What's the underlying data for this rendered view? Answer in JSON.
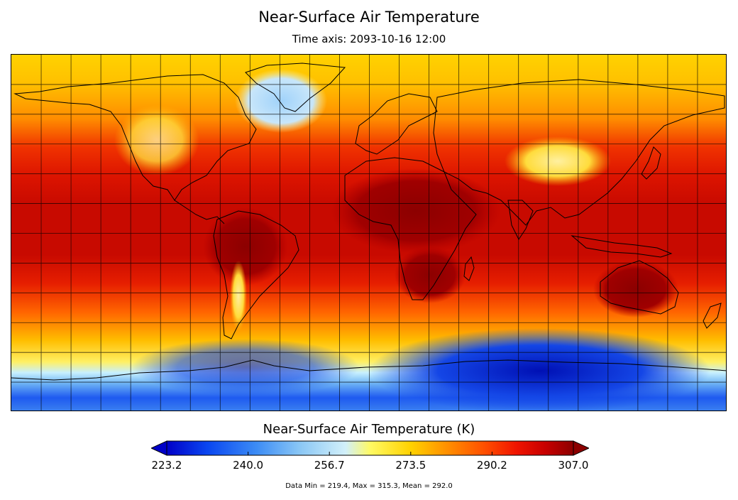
{
  "title": "Near-Surface Air Temperature",
  "subtitle": "Time axis: 2093-10-16 12:00",
  "colorbar": {
    "title": "Near-Surface Air Temperature (K)",
    "ticks": [
      "223.2",
      "240.0",
      "256.7",
      "273.5",
      "290.2",
      "307.0"
    ],
    "min": 223.2,
    "max": 307.0,
    "extend": "both",
    "colors": [
      "#0000c8",
      "#0a46f0",
      "#3c8cf5",
      "#8cc8f5",
      "#d2f0fa",
      "#fffa64",
      "#ffd200",
      "#ff9600",
      "#ff5000",
      "#f01400",
      "#c80000",
      "#8c0000"
    ]
  },
  "stats": "Data Min = 219.4, Max = 315.3, Mean = 292.0",
  "map": {
    "projection": "equirectangular",
    "grid": true,
    "grid_color": "#000000",
    "coastline_color": "#000000"
  }
}
